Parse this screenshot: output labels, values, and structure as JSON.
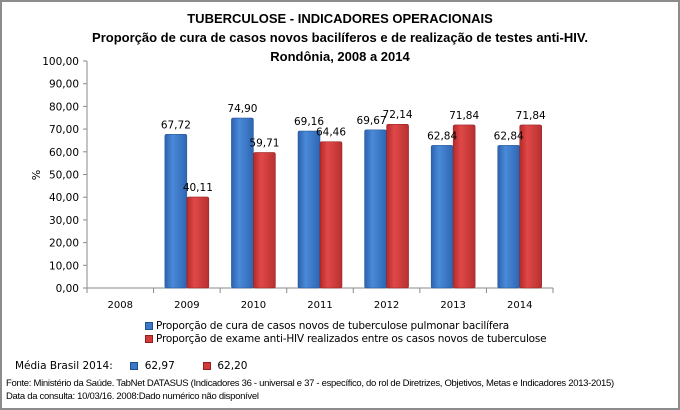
{
  "chart_data": {
    "type": "bar",
    "title": "TUBERCULOSE - INDICADORES OPERACIONAIS",
    "subtitle": "Proporção de cura de casos novos bacilíferos e de realização de testes anti-HIV.",
    "subtitle2": "Rondônia, 2008 a 2014",
    "xlabel": "",
    "ylabel": "%",
    "ylim": [
      0,
      100
    ],
    "yticks": [
      "0,00",
      "10,00",
      "20,00",
      "30,00",
      "40,00",
      "50,00",
      "60,00",
      "70,00",
      "80,00",
      "90,00",
      "100,00"
    ],
    "ytick_values": [
      0,
      10,
      20,
      30,
      40,
      50,
      60,
      70,
      80,
      90,
      100
    ],
    "grid": false,
    "legend_position": "bottom",
    "categories": [
      "2008",
      "2009",
      "2010",
      "2011",
      "2012",
      "2013",
      "2014"
    ],
    "series": [
      {
        "name": "Proporção de cura de casos novos de tuberculose pulmonar bacilífera",
        "color": "#3a78c8",
        "values": [
          null,
          67.72,
          74.9,
          69.16,
          69.67,
          62.84,
          62.84
        ],
        "labels": [
          null,
          "67,72",
          "74,90",
          "69,16",
          "69,67",
          "62,84",
          "62,84"
        ]
      },
      {
        "name": "Proporção de exame anti-HIV realizados entre os casos novos de tuberculose",
        "color": "#d23a3a",
        "values": [
          null,
          40.11,
          59.71,
          64.46,
          72.14,
          71.84,
          71.84
        ],
        "labels": [
          null,
          "40,11",
          "59,71",
          "64,46",
          "72,14",
          "71,84",
          "71,84"
        ]
      }
    ]
  },
  "media_brasil": {
    "label": "Média Brasil 2014:",
    "values": [
      "62,97",
      "62,20"
    ]
  },
  "footer": {
    "source": "Fonte: Ministério da Saúde. TabNet DATASUS (Indicadores 36 - universal e 37 - específico, do rol de Diretrizes, Objetivos, Metas e Indicadores 2013-2015)",
    "query_date": "Data da consulta: 10/03/16. 2008:Dado numérico não disponível"
  }
}
